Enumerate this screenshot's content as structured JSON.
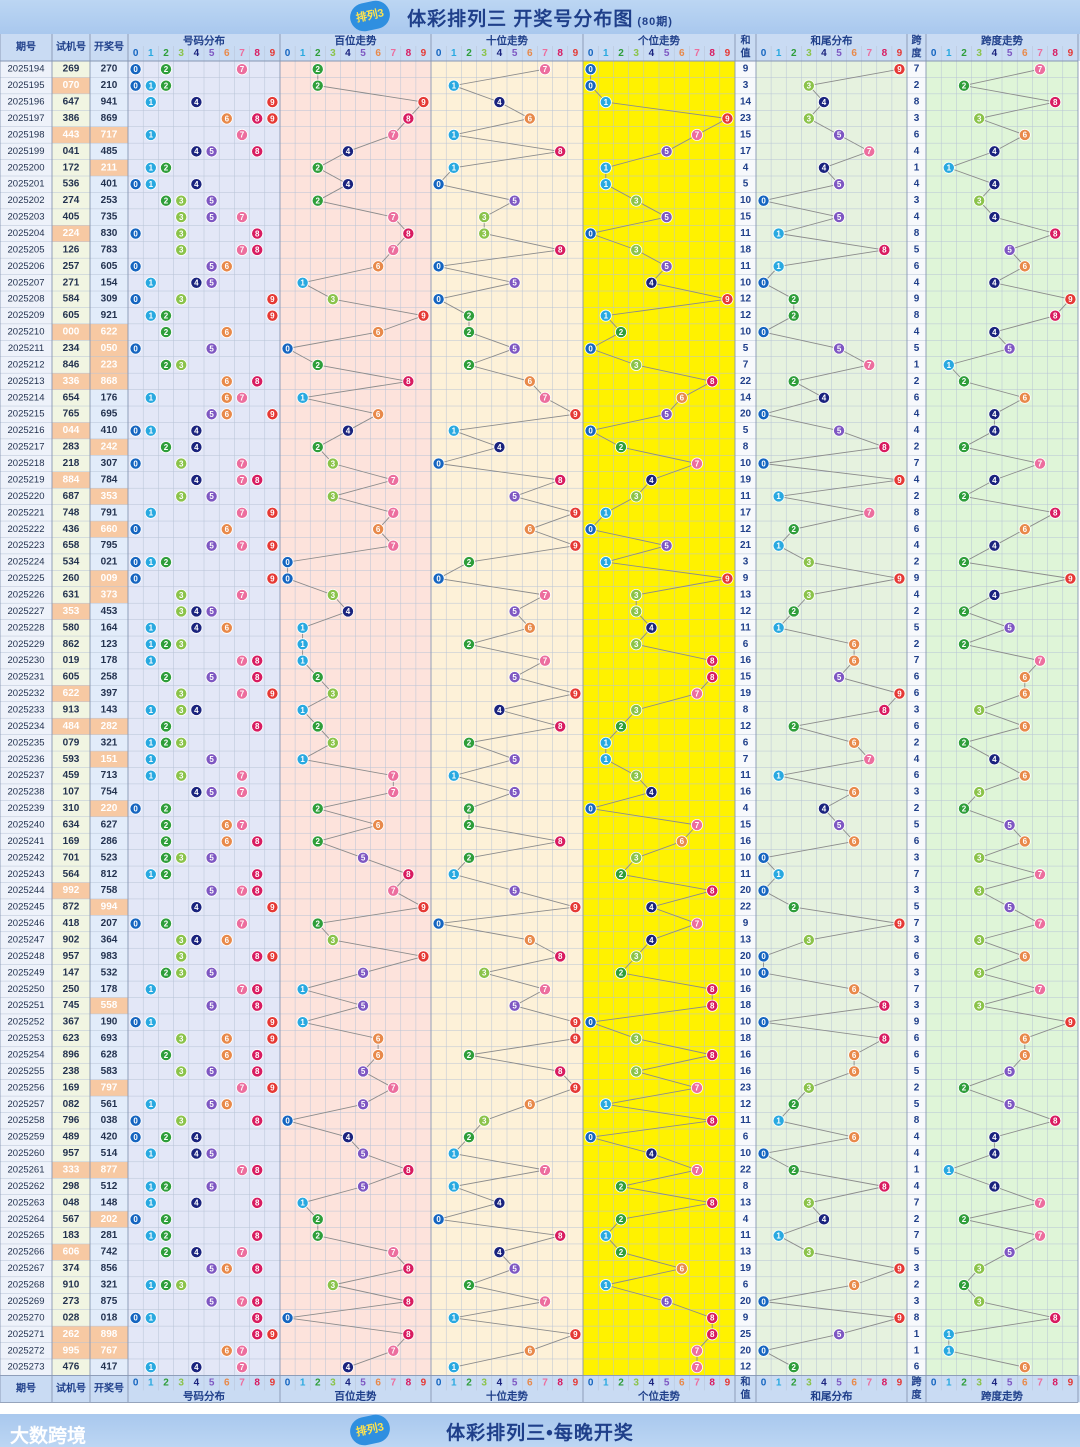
{
  "header": {
    "title": "体彩排列三 开奖号分布图",
    "subtitle": "(80期)",
    "badge": "排列3"
  },
  "footer": {
    "title": "体彩排列三•每晚开奖",
    "brand": "大数跨境",
    "badge": "排列3"
  },
  "columns": {
    "period": "期号",
    "trial": "试机号",
    "draw": "开奖号",
    "distribution": "号码分布",
    "hundreds": "百位走势",
    "tens": "十位走势",
    "units": "个位走势",
    "sum_top": "和",
    "sum_bottom": "值",
    "tail": "和尾分布",
    "span_top": "跨",
    "span_bottom": "度",
    "span_trend": "跨度走势"
  },
  "digits": [
    "0",
    "1",
    "2",
    "3",
    "4",
    "5",
    "6",
    "7",
    "8",
    "9"
  ],
  "colors": {
    "ball": [
      "#1565c0",
      "#29a9e0",
      "#2e9e3a",
      "#8bc34a",
      "#1a237e",
      "#7e57c2",
      "#e8894a",
      "#ec6e9e",
      "#d81b60",
      "#e53935"
    ],
    "dist_bg": "#e3e7f7",
    "hundreds_bg": "#fde3dc",
    "tens_bg": "#fdf1d8",
    "units_bg": "#fff200",
    "tail_bg": "#e6f2df",
    "span_bg": "#dff5d8",
    "header_bg": "#c9dbf3",
    "highlight": "#f7c9a3"
  },
  "chart_data": {
    "type": "table",
    "rows": [
      {
        "period": "2025194",
        "trial": "269",
        "draw": "270",
        "sum": "9",
        "span": "7",
        "hl_trial": false,
        "hl_draw": false
      },
      {
        "period": "2025195",
        "trial": "070",
        "draw": "210",
        "sum": "3",
        "span": "2",
        "hl_trial": true,
        "hl_draw": false
      },
      {
        "period": "2025196",
        "trial": "647",
        "draw": "941",
        "sum": "14",
        "span": "8",
        "hl_trial": false,
        "hl_draw": false
      },
      {
        "period": "2025197",
        "trial": "386",
        "draw": "869",
        "sum": "23",
        "span": "3",
        "hl_trial": false,
        "hl_draw": false
      },
      {
        "period": "2025198",
        "trial": "443",
        "draw": "717",
        "sum": "15",
        "span": "6",
        "hl_trial": true,
        "hl_draw": true
      },
      {
        "period": "2025199",
        "trial": "041",
        "draw": "485",
        "sum": "17",
        "span": "4",
        "hl_trial": false,
        "hl_draw": false
      },
      {
        "period": "2025200",
        "trial": "172",
        "draw": "211",
        "sum": "4",
        "span": "1",
        "hl_trial": false,
        "hl_draw": true
      },
      {
        "period": "2025201",
        "trial": "536",
        "draw": "401",
        "sum": "5",
        "span": "4",
        "hl_trial": false,
        "hl_draw": false
      },
      {
        "period": "2025202",
        "trial": "274",
        "draw": "253",
        "sum": "10",
        "span": "3",
        "hl_trial": false,
        "hl_draw": false
      },
      {
        "period": "2025203",
        "trial": "405",
        "draw": "735",
        "sum": "15",
        "span": "4",
        "hl_trial": false,
        "hl_draw": false
      },
      {
        "period": "2025204",
        "trial": "224",
        "draw": "830",
        "sum": "11",
        "span": "8",
        "hl_trial": true,
        "hl_draw": false
      },
      {
        "period": "2025205",
        "trial": "126",
        "draw": "783",
        "sum": "18",
        "span": "5",
        "hl_trial": false,
        "hl_draw": false
      },
      {
        "period": "2025206",
        "trial": "257",
        "draw": "605",
        "sum": "11",
        "span": "6",
        "hl_trial": false,
        "hl_draw": false
      },
      {
        "period": "2025207",
        "trial": "271",
        "draw": "154",
        "sum": "10",
        "span": "4",
        "hl_trial": false,
        "hl_draw": false
      },
      {
        "period": "2025208",
        "trial": "584",
        "draw": "309",
        "sum": "12",
        "span": "9",
        "hl_trial": false,
        "hl_draw": false
      },
      {
        "period": "2025209",
        "trial": "605",
        "draw": "921",
        "sum": "12",
        "span": "8",
        "hl_trial": false,
        "hl_draw": false
      },
      {
        "period": "2025210",
        "trial": "000",
        "draw": "622",
        "sum": "10",
        "span": "4",
        "hl_trial": true,
        "hl_draw": true
      },
      {
        "period": "2025211",
        "trial": "234",
        "draw": "050",
        "sum": "5",
        "span": "5",
        "hl_trial": false,
        "hl_draw": true
      },
      {
        "period": "2025212",
        "trial": "846",
        "draw": "223",
        "sum": "7",
        "span": "1",
        "hl_trial": false,
        "hl_draw": true
      },
      {
        "period": "2025213",
        "trial": "336",
        "draw": "868",
        "sum": "22",
        "span": "2",
        "hl_trial": true,
        "hl_draw": true
      },
      {
        "period": "2025214",
        "trial": "654",
        "draw": "176",
        "sum": "14",
        "span": "6",
        "hl_trial": false,
        "hl_draw": false
      },
      {
        "period": "2025215",
        "trial": "765",
        "draw": "695",
        "sum": "20",
        "span": "4",
        "hl_trial": false,
        "hl_draw": false
      },
      {
        "period": "2025216",
        "trial": "044",
        "draw": "410",
        "sum": "5",
        "span": "4",
        "hl_trial": true,
        "hl_draw": false
      },
      {
        "period": "2025217",
        "trial": "283",
        "draw": "242",
        "sum": "8",
        "span": "2",
        "hl_trial": false,
        "hl_draw": true
      },
      {
        "period": "2025218",
        "trial": "218",
        "draw": "307",
        "sum": "10",
        "span": "7",
        "hl_trial": false,
        "hl_draw": false
      },
      {
        "period": "2025219",
        "trial": "884",
        "draw": "784",
        "sum": "19",
        "span": "4",
        "hl_trial": true,
        "hl_draw": false
      },
      {
        "period": "2025220",
        "trial": "687",
        "draw": "353",
        "sum": "11",
        "span": "2",
        "hl_trial": false,
        "hl_draw": true
      },
      {
        "period": "2025221",
        "trial": "748",
        "draw": "791",
        "sum": "17",
        "span": "8",
        "hl_trial": false,
        "hl_draw": false
      },
      {
        "period": "2025222",
        "trial": "436",
        "draw": "660",
        "sum": "12",
        "span": "6",
        "hl_trial": false,
        "hl_draw": true
      },
      {
        "period": "2025223",
        "trial": "658",
        "draw": "795",
        "sum": "21",
        "span": "4",
        "hl_trial": false,
        "hl_draw": false
      },
      {
        "period": "2025224",
        "trial": "534",
        "draw": "021",
        "sum": "3",
        "span": "2",
        "hl_trial": false,
        "hl_draw": false
      },
      {
        "period": "2025225",
        "trial": "260",
        "draw": "009",
        "sum": "9",
        "span": "9",
        "hl_trial": false,
        "hl_draw": true
      },
      {
        "period": "2025226",
        "trial": "631",
        "draw": "373",
        "sum": "13",
        "span": "4",
        "hl_trial": false,
        "hl_draw": true
      },
      {
        "period": "2025227",
        "trial": "353",
        "draw": "453",
        "sum": "12",
        "span": "2",
        "hl_trial": true,
        "hl_draw": false
      },
      {
        "period": "2025228",
        "trial": "580",
        "draw": "164",
        "sum": "11",
        "span": "5",
        "hl_trial": false,
        "hl_draw": false
      },
      {
        "period": "2025229",
        "trial": "862",
        "draw": "123",
        "sum": "6",
        "span": "2",
        "hl_trial": false,
        "hl_draw": false
      },
      {
        "period": "2025230",
        "trial": "019",
        "draw": "178",
        "sum": "16",
        "span": "7",
        "hl_trial": false,
        "hl_draw": false
      },
      {
        "period": "2025231",
        "trial": "605",
        "draw": "258",
        "sum": "15",
        "span": "6",
        "hl_trial": false,
        "hl_draw": false
      },
      {
        "period": "2025232",
        "trial": "622",
        "draw": "397",
        "sum": "19",
        "span": "6",
        "hl_trial": true,
        "hl_draw": false
      },
      {
        "period": "2025233",
        "trial": "913",
        "draw": "143",
        "sum": "8",
        "span": "3",
        "hl_trial": false,
        "hl_draw": false
      },
      {
        "period": "2025234",
        "trial": "484",
        "draw": "282",
        "sum": "12",
        "span": "6",
        "hl_trial": true,
        "hl_draw": true
      },
      {
        "period": "2025235",
        "trial": "079",
        "draw": "321",
        "sum": "6",
        "span": "2",
        "hl_trial": false,
        "hl_draw": false
      },
      {
        "period": "2025236",
        "trial": "593",
        "draw": "151",
        "sum": "7",
        "span": "4",
        "hl_trial": false,
        "hl_draw": true
      },
      {
        "period": "2025237",
        "trial": "459",
        "draw": "713",
        "sum": "11",
        "span": "6",
        "hl_trial": false,
        "hl_draw": false
      },
      {
        "period": "2025238",
        "trial": "107",
        "draw": "754",
        "sum": "16",
        "span": "3",
        "hl_trial": false,
        "hl_draw": false
      },
      {
        "period": "2025239",
        "trial": "310",
        "draw": "220",
        "sum": "4",
        "span": "2",
        "hl_trial": false,
        "hl_draw": true
      },
      {
        "period": "2025240",
        "trial": "634",
        "draw": "627",
        "sum": "15",
        "span": "5",
        "hl_trial": false,
        "hl_draw": false
      },
      {
        "period": "2025241",
        "trial": "169",
        "draw": "286",
        "sum": "16",
        "span": "6",
        "hl_trial": false,
        "hl_draw": false
      },
      {
        "period": "2025242",
        "trial": "701",
        "draw": "523",
        "sum": "10",
        "span": "3",
        "hl_trial": false,
        "hl_draw": false
      },
      {
        "period": "2025243",
        "trial": "564",
        "draw": "812",
        "sum": "11",
        "span": "7",
        "hl_trial": false,
        "hl_draw": false
      },
      {
        "period": "2025244",
        "trial": "992",
        "draw": "758",
        "sum": "20",
        "span": "3",
        "hl_trial": true,
        "hl_draw": false
      },
      {
        "period": "2025245",
        "trial": "872",
        "draw": "994",
        "sum": "22",
        "span": "5",
        "hl_trial": false,
        "hl_draw": true
      },
      {
        "period": "2025246",
        "trial": "418",
        "draw": "207",
        "sum": "9",
        "span": "7",
        "hl_trial": false,
        "hl_draw": false
      },
      {
        "period": "2025247",
        "trial": "902",
        "draw": "364",
        "sum": "13",
        "span": "3",
        "hl_trial": false,
        "hl_draw": false
      },
      {
        "period": "2025248",
        "trial": "957",
        "draw": "983",
        "sum": "20",
        "span": "6",
        "hl_trial": false,
        "hl_draw": false
      },
      {
        "period": "2025249",
        "trial": "147",
        "draw": "532",
        "sum": "10",
        "span": "3",
        "hl_trial": false,
        "hl_draw": false
      },
      {
        "period": "2025250",
        "trial": "250",
        "draw": "178",
        "sum": "16",
        "span": "7",
        "hl_trial": false,
        "hl_draw": false
      },
      {
        "period": "2025251",
        "trial": "745",
        "draw": "558",
        "sum": "18",
        "span": "3",
        "hl_trial": false,
        "hl_draw": true
      },
      {
        "period": "2025252",
        "trial": "367",
        "draw": "190",
        "sum": "10",
        "span": "9",
        "hl_trial": false,
        "hl_draw": false
      },
      {
        "period": "2025253",
        "trial": "623",
        "draw": "693",
        "sum": "18",
        "span": "6",
        "hl_trial": false,
        "hl_draw": false
      },
      {
        "period": "2025254",
        "trial": "896",
        "draw": "628",
        "sum": "16",
        "span": "6",
        "hl_trial": false,
        "hl_draw": false
      },
      {
        "period": "2025255",
        "trial": "238",
        "draw": "583",
        "sum": "16",
        "span": "5",
        "hl_trial": false,
        "hl_draw": false
      },
      {
        "period": "2025256",
        "trial": "169",
        "draw": "797",
        "sum": "23",
        "span": "2",
        "hl_trial": false,
        "hl_draw": true
      },
      {
        "period": "2025257",
        "trial": "082",
        "draw": "561",
        "sum": "12",
        "span": "5",
        "hl_trial": false,
        "hl_draw": false
      },
      {
        "period": "2025258",
        "trial": "796",
        "draw": "038",
        "sum": "11",
        "span": "8",
        "hl_trial": false,
        "hl_draw": false
      },
      {
        "period": "2025259",
        "trial": "489",
        "draw": "420",
        "sum": "6",
        "span": "4",
        "hl_trial": false,
        "hl_draw": false
      },
      {
        "period": "2025260",
        "trial": "957",
        "draw": "514",
        "sum": "10",
        "span": "4",
        "hl_trial": false,
        "hl_draw": false
      },
      {
        "period": "2025261",
        "trial": "333",
        "draw": "877",
        "sum": "22",
        "span": "1",
        "hl_trial": true,
        "hl_draw": true
      },
      {
        "period": "2025262",
        "trial": "298",
        "draw": "512",
        "sum": "8",
        "span": "4",
        "hl_trial": false,
        "hl_draw": false
      },
      {
        "period": "2025263",
        "trial": "048",
        "draw": "148",
        "sum": "13",
        "span": "7",
        "hl_trial": false,
        "hl_draw": false
      },
      {
        "period": "2025264",
        "trial": "567",
        "draw": "202",
        "sum": "4",
        "span": "2",
        "hl_trial": false,
        "hl_draw": true
      },
      {
        "period": "2025265",
        "trial": "183",
        "draw": "281",
        "sum": "11",
        "span": "7",
        "hl_trial": false,
        "hl_draw": false
      },
      {
        "period": "2025266",
        "trial": "606",
        "draw": "742",
        "sum": "13",
        "span": "5",
        "hl_trial": true,
        "hl_draw": false
      },
      {
        "period": "2025267",
        "trial": "374",
        "draw": "856",
        "sum": "19",
        "span": "3",
        "hl_trial": false,
        "hl_draw": false
      },
      {
        "period": "2025268",
        "trial": "910",
        "draw": "321",
        "sum": "6",
        "span": "2",
        "hl_trial": false,
        "hl_draw": false
      },
      {
        "period": "2025269",
        "trial": "273",
        "draw": "875",
        "sum": "20",
        "span": "3",
        "hl_trial": false,
        "hl_draw": false
      },
      {
        "period": "2025270",
        "trial": "028",
        "draw": "018",
        "sum": "9",
        "span": "8",
        "hl_trial": false,
        "hl_draw": false
      },
      {
        "period": "2025271",
        "trial": "262",
        "draw": "898",
        "sum": "25",
        "span": "1",
        "hl_trial": true,
        "hl_draw": true
      },
      {
        "period": "2025272",
        "trial": "995",
        "draw": "767",
        "sum": "20",
        "span": "1",
        "hl_trial": true,
        "hl_draw": true
      },
      {
        "period": "2025273",
        "trial": "476",
        "draw": "417",
        "sum": "12",
        "span": "6",
        "hl_trial": false,
        "hl_draw": false
      }
    ]
  }
}
